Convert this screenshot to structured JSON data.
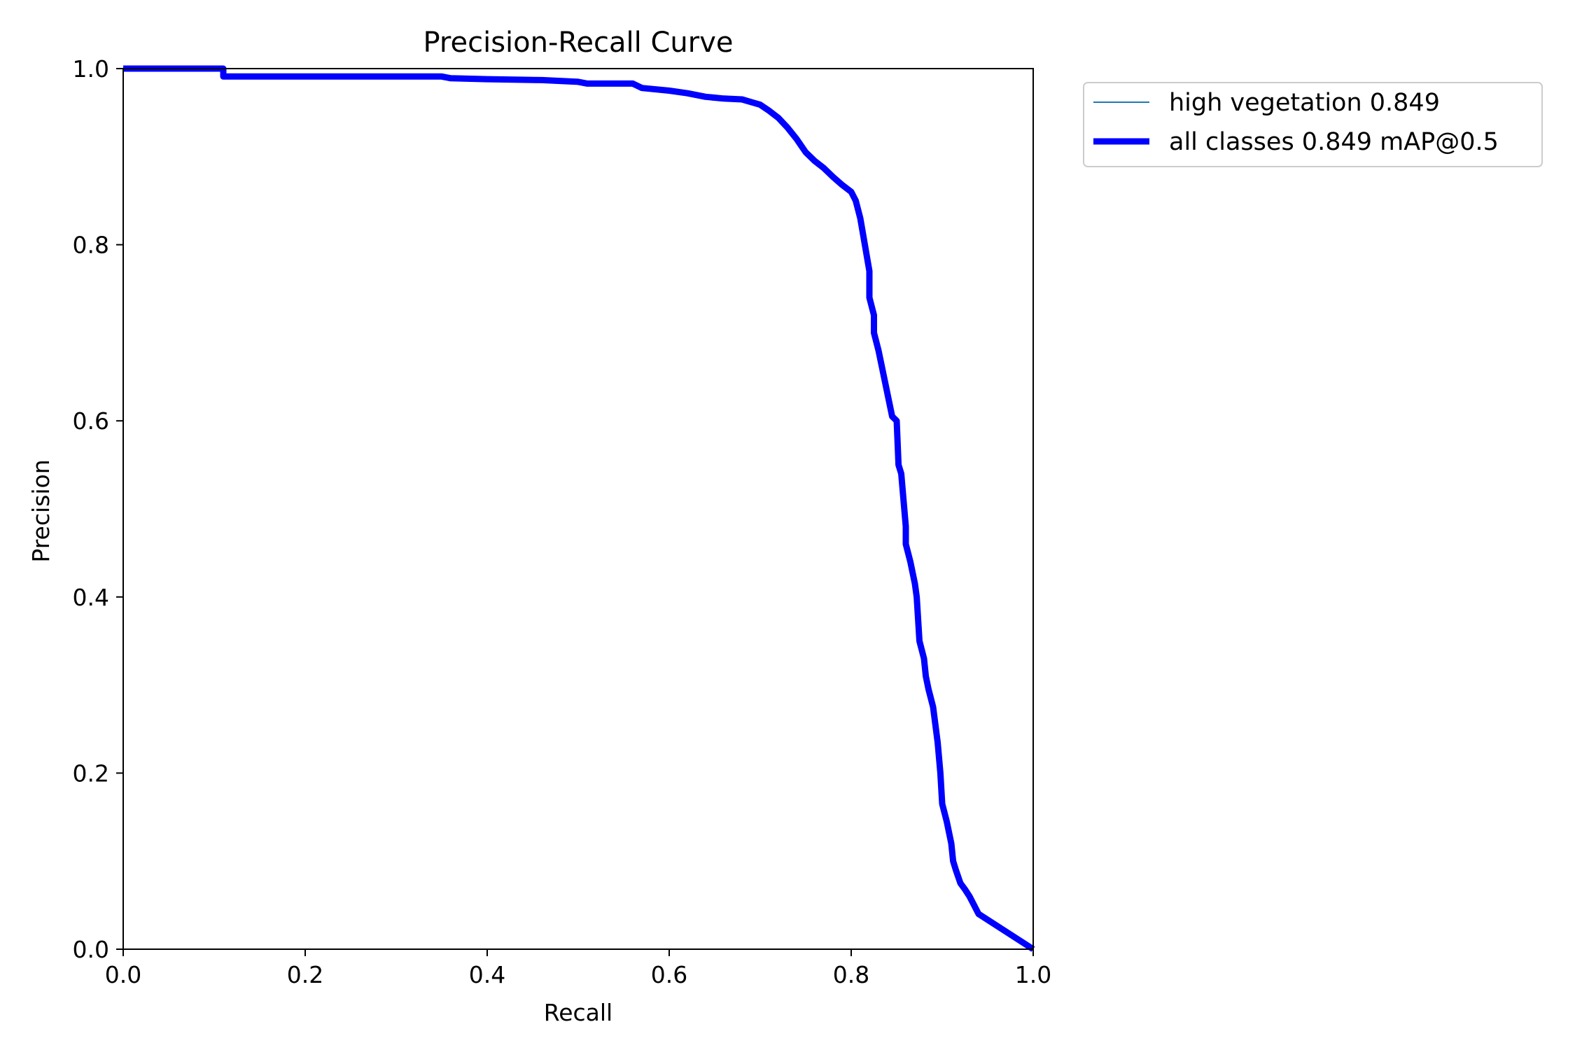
{
  "chart_data": {
    "type": "line",
    "title": "Precision-Recall Curve",
    "xlabel": "Recall",
    "ylabel": "Precision",
    "xlim": [
      0.0,
      1.0
    ],
    "ylim": [
      0.0,
      1.0
    ],
    "x_ticks": [
      "0.0",
      "0.2",
      "0.4",
      "0.6",
      "0.8",
      "1.0"
    ],
    "y_ticks": [
      "0.0",
      "0.2",
      "0.4",
      "0.6",
      "0.8",
      "1.0"
    ],
    "grid": false,
    "legend_position": "outside-top-right",
    "series": [
      {
        "name": "high vegetation 0.849",
        "color": "#1f77b4",
        "style": "thin",
        "x": [
          0.0,
          0.11,
          0.11,
          0.35,
          0.36,
          0.4,
          0.46,
          0.5,
          0.51,
          0.56,
          0.57,
          0.6,
          0.62,
          0.64,
          0.66,
          0.68,
          0.69,
          0.7,
          0.71,
          0.72,
          0.73,
          0.74,
          0.75,
          0.76,
          0.77,
          0.78,
          0.79,
          0.8,
          0.805,
          0.81,
          0.815,
          0.82,
          0.82,
          0.825,
          0.825,
          0.83,
          0.835,
          0.84,
          0.845,
          0.85,
          0.852,
          0.855,
          0.86,
          0.86,
          0.865,
          0.87,
          0.872,
          0.875,
          0.88,
          0.882,
          0.885,
          0.89,
          0.895,
          0.898,
          0.9,
          0.905,
          0.91,
          0.912,
          0.915,
          0.92,
          0.925,
          0.93,
          0.935,
          0.94,
          1.0
        ],
        "y": [
          1.0,
          1.0,
          0.991,
          0.991,
          0.989,
          0.988,
          0.987,
          0.985,
          0.983,
          0.983,
          0.978,
          0.975,
          0.972,
          0.968,
          0.966,
          0.965,
          0.962,
          0.959,
          0.952,
          0.944,
          0.933,
          0.92,
          0.905,
          0.895,
          0.887,
          0.877,
          0.868,
          0.86,
          0.85,
          0.83,
          0.8,
          0.77,
          0.74,
          0.72,
          0.7,
          0.68,
          0.655,
          0.63,
          0.605,
          0.6,
          0.55,
          0.54,
          0.48,
          0.46,
          0.44,
          0.415,
          0.4,
          0.35,
          0.33,
          0.31,
          0.295,
          0.275,
          0.235,
          0.2,
          0.165,
          0.145,
          0.12,
          0.1,
          0.09,
          0.075,
          0.068,
          0.06,
          0.05,
          0.04,
          0.0
        ]
      },
      {
        "name": "all classes 0.849 mAP@0.5",
        "color": "#0000ff",
        "style": "thick",
        "x": [
          0.0,
          0.11,
          0.11,
          0.35,
          0.36,
          0.4,
          0.46,
          0.5,
          0.51,
          0.56,
          0.57,
          0.6,
          0.62,
          0.64,
          0.66,
          0.68,
          0.69,
          0.7,
          0.71,
          0.72,
          0.73,
          0.74,
          0.75,
          0.76,
          0.77,
          0.78,
          0.79,
          0.8,
          0.805,
          0.81,
          0.815,
          0.82,
          0.82,
          0.825,
          0.825,
          0.83,
          0.835,
          0.84,
          0.845,
          0.85,
          0.852,
          0.855,
          0.86,
          0.86,
          0.865,
          0.87,
          0.872,
          0.875,
          0.88,
          0.882,
          0.885,
          0.89,
          0.895,
          0.898,
          0.9,
          0.905,
          0.91,
          0.912,
          0.915,
          0.92,
          0.925,
          0.93,
          0.935,
          0.94,
          1.0
        ],
        "y": [
          1.0,
          1.0,
          0.991,
          0.991,
          0.989,
          0.988,
          0.987,
          0.985,
          0.983,
          0.983,
          0.978,
          0.975,
          0.972,
          0.968,
          0.966,
          0.965,
          0.962,
          0.959,
          0.952,
          0.944,
          0.933,
          0.92,
          0.905,
          0.895,
          0.887,
          0.877,
          0.868,
          0.86,
          0.85,
          0.83,
          0.8,
          0.77,
          0.74,
          0.72,
          0.7,
          0.68,
          0.655,
          0.63,
          0.605,
          0.6,
          0.55,
          0.54,
          0.48,
          0.46,
          0.44,
          0.415,
          0.4,
          0.35,
          0.33,
          0.31,
          0.295,
          0.275,
          0.235,
          0.2,
          0.165,
          0.145,
          0.12,
          0.1,
          0.09,
          0.075,
          0.068,
          0.06,
          0.05,
          0.04,
          0.0
        ]
      }
    ]
  }
}
